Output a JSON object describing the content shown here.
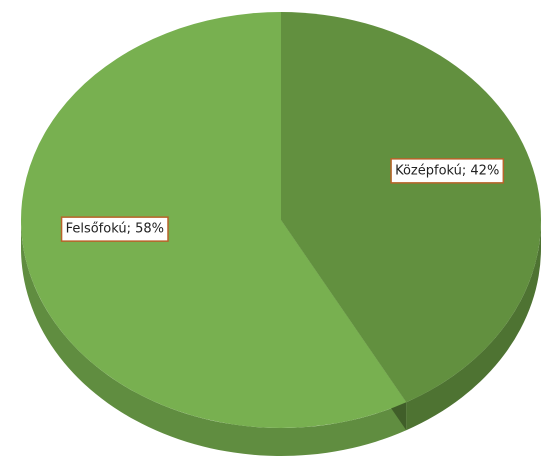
{
  "chart_data": {
    "type": "pie",
    "categories": [
      "Középfokú",
      "Felsőfokú"
    ],
    "values": [
      42,
      58
    ],
    "value_labels": [
      "Középfokú; 42%",
      "Felsőfokú; 58%"
    ],
    "colors": [
      "#62903f",
      "#78b050"
    ]
  }
}
